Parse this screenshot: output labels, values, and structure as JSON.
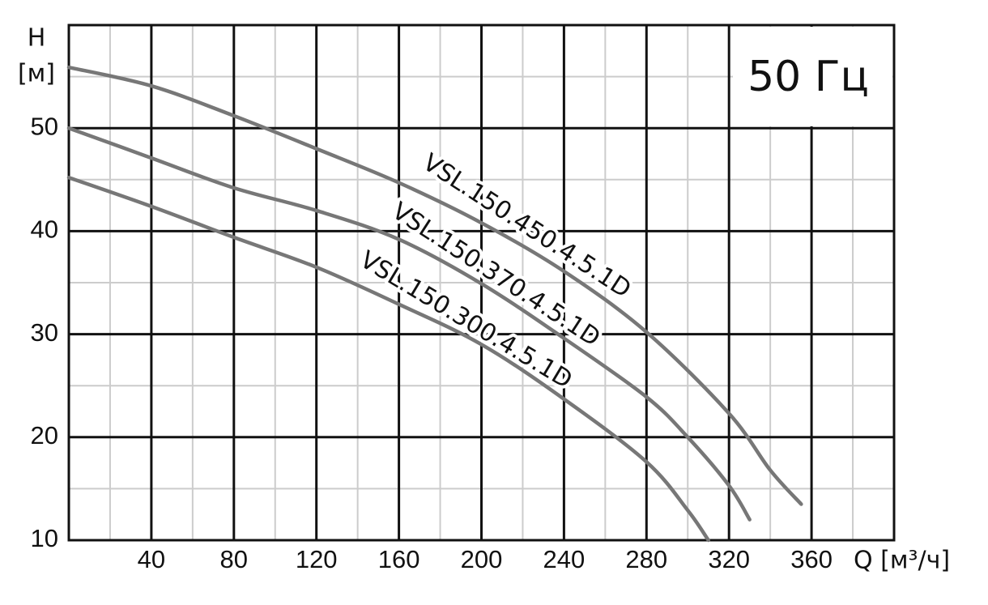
{
  "chart_data": {
    "type": "line",
    "title": "50 Гц",
    "y_label_line1": "H",
    "y_label_line2": "[м]",
    "x_label": "Q [м³/ч]",
    "xlim": [
      0,
      400
    ],
    "ylim": [
      10,
      60
    ],
    "xticks": [
      40,
      80,
      120,
      160,
      200,
      240,
      280,
      320,
      360
    ],
    "yticks": [
      10,
      20,
      30,
      40,
      50
    ],
    "xminorticks": [
      20,
      60,
      100,
      140,
      180,
      220,
      260,
      300,
      340,
      380
    ],
    "yminorticks": [
      15,
      25,
      35,
      45,
      55
    ],
    "grid": true,
    "series": [
      {
        "name": "VSL.150.450.4.5.1D",
        "color": "#777777",
        "x": [
          0,
          40,
          80,
          120,
          160,
          200,
          240,
          280,
          320,
          340,
          355
        ],
        "values": [
          55.9,
          54.1,
          51.2,
          48.0,
          44.7,
          40.8,
          36.1,
          30.2,
          22.3,
          16.8,
          13.5
        ]
      },
      {
        "name": "VSL.150.370.4.5.1D",
        "color": "#777777",
        "x": [
          0,
          40,
          80,
          120,
          160,
          200,
          240,
          280,
          300,
          320,
          330
        ],
        "values": [
          50.0,
          47.1,
          44.2,
          42.0,
          39.2,
          34.9,
          29.6,
          23.9,
          20.0,
          15.3,
          12.0
        ]
      },
      {
        "name": "VSL.150.300.4.5.1D",
        "color": "#777777",
        "x": [
          0,
          40,
          80,
          120,
          160,
          200,
          240,
          280,
          300,
          310
        ],
        "values": [
          45.2,
          42.4,
          39.4,
          36.5,
          32.9,
          29.0,
          23.7,
          17.6,
          12.9,
          10.0
        ]
      }
    ]
  }
}
